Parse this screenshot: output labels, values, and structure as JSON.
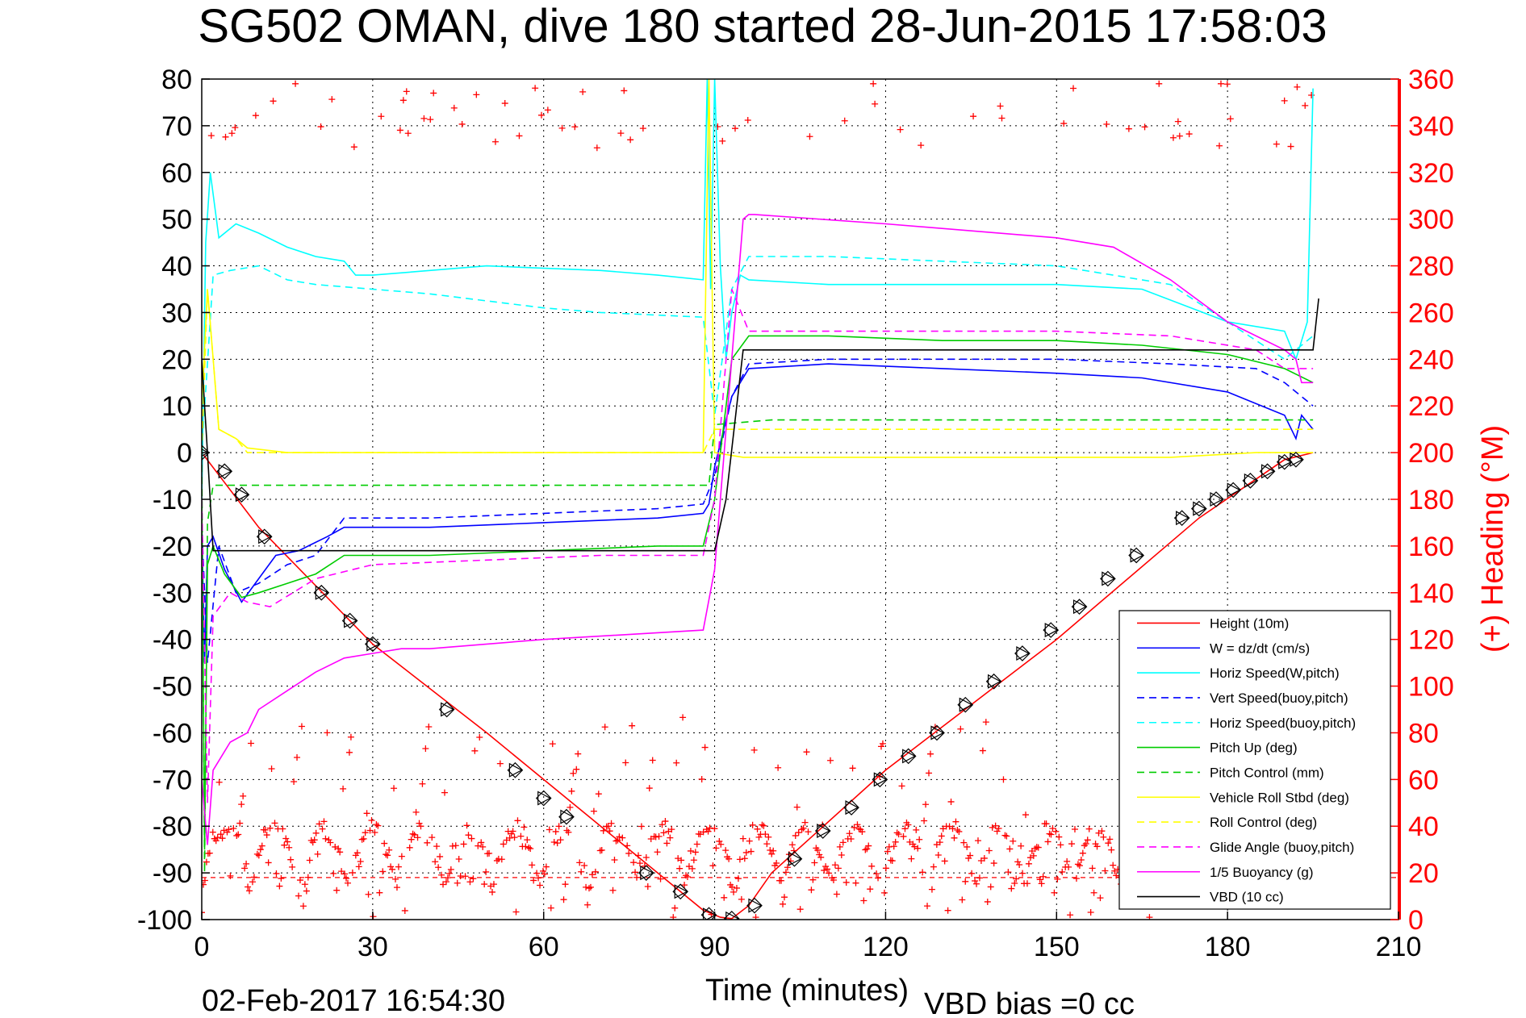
{
  "chart_data": {
    "type": "line",
    "title": "SG502 OMAN, dive 180 started 28-Jun-2015 17:58:03",
    "xlabel": "Time (minutes)",
    "ylabel_right": "(+) Heading (°M)",
    "footer_date": "02-Feb-2017 16:54:30",
    "footer_bias": "VBD bias =0 cc",
    "xlim": [
      0,
      210
    ],
    "ylim": [
      -100,
      80
    ],
    "y2lim": [
      0,
      360
    ],
    "xticks": [
      "0",
      "30",
      "60",
      "90",
      "120",
      "150",
      "180",
      "210"
    ],
    "yticks": [
      "80",
      "70",
      "60",
      "50",
      "40",
      "30",
      "20",
      "10",
      "0",
      "-10",
      "-20",
      "-30",
      "-40",
      "-50",
      "-60",
      "-70",
      "-80",
      "-90",
      "-100"
    ],
    "y2ticks": [
      "360",
      "340",
      "320",
      "300",
      "280",
      "260",
      "240",
      "220",
      "200",
      "180",
      "160",
      "140",
      "120",
      "100",
      "80",
      "60",
      "40",
      "20",
      "0"
    ],
    "grid": true,
    "legend_position": "bottom-right",
    "series": [
      {
        "name": "Height (10m)",
        "color": "#ff0000",
        "style": "solid",
        "x": [
          0,
          10,
          30,
          50,
          70,
          80,
          88,
          91,
          93,
          96,
          100,
          120,
          150,
          175,
          190,
          195
        ],
        "y": [
          0,
          -16,
          -41,
          -60,
          -80,
          -90,
          -98,
          -99.5,
          -99.8,
          -97,
          -90,
          -68,
          -40,
          -14,
          -1.5,
          0
        ]
      },
      {
        "name": "W = dz/dt (cm/s)",
        "color": "#0000ff",
        "style": "solid",
        "x": [
          0,
          0.5,
          1,
          2,
          4,
          7,
          10,
          13,
          17,
          22,
          25,
          40,
          60,
          80,
          88,
          89,
          90,
          93,
          96,
          110,
          130,
          150,
          165,
          180,
          190,
          192,
          193,
          195
        ],
        "y": [
          -15,
          -45,
          -20,
          -18,
          -25,
          -32,
          -27,
          -22,
          -21,
          -18,
          -16,
          -16,
          -15,
          -14,
          -13,
          -11,
          -3,
          12,
          18,
          19,
          18,
          17,
          16,
          13,
          8,
          3,
          8,
          5
        ]
      },
      {
        "name": "Horiz Speed(W,pitch)",
        "color": "#00ffff",
        "style": "solid",
        "x": [
          0,
          0.7,
          1.5,
          3,
          6,
          10,
          15,
          20,
          25,
          27,
          30,
          50,
          70,
          80,
          88,
          88.7,
          89.3,
          90,
          91,
          92,
          93,
          94.5,
          96,
          110,
          150,
          165,
          180,
          190,
          192,
          194,
          195
        ],
        "y": [
          -10,
          45,
          60,
          46,
          49,
          47,
          44,
          42,
          41,
          38,
          38,
          40,
          39,
          38,
          37,
          80,
          35,
          80,
          40,
          20,
          30,
          38,
          37,
          36,
          36,
          35,
          28,
          26,
          20,
          28,
          78
        ]
      },
      {
        "name": "Vert Speed(buoy,pitch)",
        "color": "#0000ff",
        "style": "dashed",
        "x": [
          0,
          1,
          3,
          6,
          10,
          15,
          20,
          25,
          40,
          60,
          80,
          88,
          90,
          93,
          96,
          110,
          130,
          150,
          170,
          185,
          190,
          195
        ],
        "y": [
          -15,
          -45,
          -20,
          -30,
          -28,
          -24,
          -22,
          -14,
          -14,
          -13,
          -12,
          -11,
          -5,
          12,
          19,
          20,
          20,
          20,
          19,
          18,
          15,
          10
        ]
      },
      {
        "name": "Horiz Speed(buoy,pitch)",
        "color": "#00ffff",
        "style": "dashed",
        "x": [
          0,
          2,
          5,
          10,
          15,
          20,
          40,
          60,
          70,
          88,
          90,
          93,
          96,
          110,
          130,
          150,
          170,
          185,
          190,
          195
        ],
        "y": [
          0,
          38,
          39,
          40,
          37,
          36,
          34,
          31,
          30,
          29,
          8,
          35,
          42,
          42,
          41,
          40,
          36,
          24,
          20,
          25
        ]
      },
      {
        "name": "Pitch Up (deg)",
        "color": "#00cc00",
        "style": "solid",
        "x": [
          0,
          0.5,
          1,
          2,
          4,
          7,
          10,
          15,
          20,
          25,
          40,
          60,
          80,
          88,
          90,
          93,
          96,
          110,
          130,
          150,
          165,
          180,
          190,
          195
        ],
        "y": [
          -10,
          -85,
          -24,
          -20,
          -26,
          -31,
          -30,
          -28,
          -26,
          -22,
          -22,
          -21,
          -20,
          -20,
          -10,
          20,
          25,
          25,
          24,
          24,
          23,
          21,
          18,
          15
        ]
      },
      {
        "name": "Pitch Control (mm)",
        "color": "#00cc00",
        "style": "dashed",
        "x": [
          0,
          0.5,
          1,
          2,
          88,
          89,
          90,
          100,
          195
        ],
        "y": [
          0,
          -90,
          -15,
          -7,
          -7,
          -7,
          6,
          7,
          7
        ]
      },
      {
        "name": "Vehicle Roll Stbd (deg)",
        "color": "#ffff00",
        "style": "solid",
        "x": [
          0,
          1,
          3,
          6,
          8,
          15,
          25,
          50,
          70,
          88,
          89,
          90,
          95,
          110,
          130,
          150,
          170,
          185,
          195
        ],
        "y": [
          10,
          35,
          5,
          3,
          1,
          0,
          0,
          0,
          0,
          0,
          80,
          0,
          -1,
          -1,
          -1,
          -1,
          -1,
          0,
          0
        ]
      },
      {
        "name": "Roll Control (deg)",
        "color": "#ffff00",
        "style": "dashed",
        "x": [
          0,
          1,
          3,
          6,
          8,
          30,
          60,
          88,
          90,
          95,
          120,
          150,
          180,
          195
        ],
        "y": [
          0,
          35,
          5,
          3,
          0,
          0,
          0,
          0,
          5,
          5,
          5,
          5,
          5,
          5
        ]
      },
      {
        "name": "Glide Angle (buoy,pitch)",
        "color": "#ff00ff",
        "style": "dashed",
        "x": [
          0,
          1,
          2,
          5,
          8,
          12,
          20,
          30,
          50,
          70,
          88,
          90,
          93,
          96,
          110,
          130,
          150,
          170,
          185,
          190,
          195
        ],
        "y": [
          -10,
          -75,
          -35,
          -30,
          -32,
          -33,
          -27,
          -24,
          -23,
          -22,
          -22,
          -10,
          35,
          26,
          26,
          26,
          26,
          25,
          22,
          18,
          18
        ]
      },
      {
        "name": "1/5 Buoyancy (g)",
        "color": "#ff00ff",
        "style": "solid",
        "x": [
          0,
          1,
          2,
          5,
          8,
          10,
          15,
          20,
          25,
          30,
          35,
          40,
          60,
          88,
          90,
          95,
          96,
          97,
          120,
          150,
          160,
          170,
          180,
          190,
          192,
          193,
          195
        ],
        "y": [
          -70,
          -84,
          -68,
          -62,
          -60,
          -55,
          -51,
          -47,
          -44,
          -43,
          -42,
          -42,
          -40,
          -38,
          -25,
          50,
          51,
          51,
          49,
          46,
          44,
          37,
          28,
          22,
          20,
          15,
          15
        ]
      },
      {
        "name": "VBD (10 cc)",
        "color": "#000000",
        "style": "solid",
        "x": [
          0,
          1,
          2,
          3,
          30,
          35,
          90,
          92,
          95,
          100,
          195,
          196
        ],
        "y": [
          20,
          0,
          -21,
          -21,
          -21,
          -21,
          -21,
          -10,
          22,
          22,
          22,
          33
        ]
      }
    ],
    "heading_marker": "+",
    "heading_color": "#ff0000",
    "reference_line_y": -91,
    "sample_marker": "diamond/triangle",
    "sample_points": [
      [
        0,
        0
      ],
      [
        4,
        -4
      ],
      [
        7,
        -9
      ],
      [
        11,
        -18
      ],
      [
        21,
        -30
      ],
      [
        26,
        -36
      ],
      [
        30,
        -41
      ],
      [
        43,
        -55
      ],
      [
        55,
        -68
      ],
      [
        60,
        -74
      ],
      [
        64,
        -78
      ],
      [
        78,
        -90
      ],
      [
        84,
        -94
      ],
      [
        89,
        -99
      ],
      [
        93,
        -99.8
      ],
      [
        97,
        -97
      ],
      [
        104,
        -87
      ],
      [
        109,
        -81
      ],
      [
        114,
        -76
      ],
      [
        119,
        -70
      ],
      [
        124,
        -65
      ],
      [
        129,
        -60
      ],
      [
        134,
        -54
      ],
      [
        139,
        -49
      ],
      [
        144,
        -43
      ],
      [
        149,
        -38
      ],
      [
        154,
        -33
      ],
      [
        159,
        -27
      ],
      [
        164,
        -22
      ],
      [
        172,
        -14
      ],
      [
        175,
        -12
      ],
      [
        178,
        -10
      ],
      [
        181,
        -8
      ],
      [
        184,
        -6
      ],
      [
        187,
        -4
      ],
      [
        190,
        -2
      ],
      [
        192,
        -1.5
      ]
    ]
  },
  "legend": {
    "items": [
      {
        "label": "Height (10m)",
        "color": "#ff0000",
        "style": "solid"
      },
      {
        "label": "W = dz/dt (cm/s)",
        "color": "#0000ff",
        "style": "solid"
      },
      {
        "label": "Horiz Speed(W,pitch)",
        "color": "#00ffff",
        "style": "solid"
      },
      {
        "label": "Vert Speed(buoy,pitch)",
        "color": "#0000ff",
        "style": "dashed"
      },
      {
        "label": "Horiz Speed(buoy,pitch)",
        "color": "#00ffff",
        "style": "dashed"
      },
      {
        "label": "Pitch Up (deg)",
        "color": "#00cc00",
        "style": "solid"
      },
      {
        "label": "Pitch Control (mm)",
        "color": "#00cc00",
        "style": "dashed"
      },
      {
        "label": "Vehicle Roll Stbd (deg)",
        "color": "#ffff00",
        "style": "solid"
      },
      {
        "label": "Roll Control (deg)",
        "color": "#ffff00",
        "style": "dashed"
      },
      {
        "label": "Glide Angle (buoy,pitch)",
        "color": "#ff00ff",
        "style": "dashed"
      },
      {
        "label": "1/5 Buoyancy (g)",
        "color": "#ff00ff",
        "style": "solid"
      },
      {
        "label": "VBD (10 cc)",
        "color": "#000000",
        "style": "solid"
      }
    ]
  }
}
